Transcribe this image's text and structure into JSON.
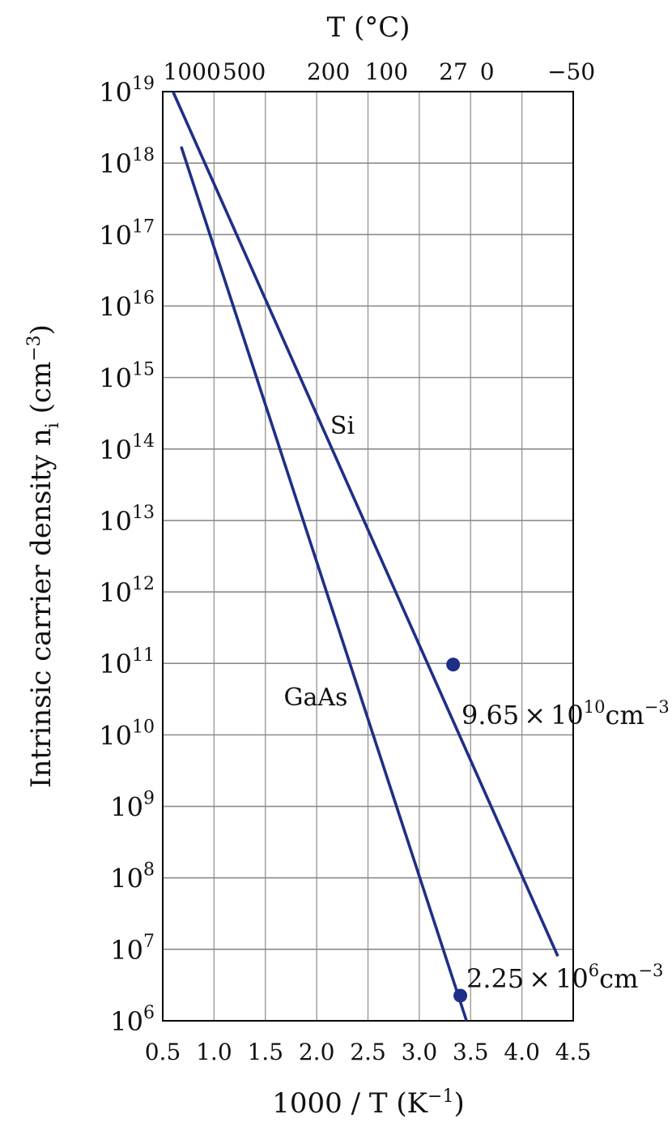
{
  "chart_data": {
    "type": "line",
    "x_axis": {
      "label": "1000 / T (K",
      "label_sup": "−1",
      "label_end": ")",
      "range": [
        0.5,
        4.5
      ],
      "ticks": [
        "0.5",
        "1.0",
        "1.5",
        "2.0",
        "2.5",
        "3.0",
        "3.5",
        "4.0",
        "4.5"
      ],
      "tick_values": [
        0.5,
        1.0,
        1.5,
        2.0,
        2.5,
        3.0,
        3.5,
        4.0,
        4.5
      ]
    },
    "top_axis": {
      "label": "T (°C)",
      "ticks": [
        {
          "text": "1000",
          "x": 0.7855
        },
        {
          "text": "500",
          "x": 1.2937
        },
        {
          "text": "200",
          "x": 2.1139
        },
        {
          "text": "100",
          "x": 2.6799
        },
        {
          "text": "27",
          "x": 3.3322
        },
        {
          "text": "0",
          "x": 3.661
        },
        {
          "text": "−50",
          "x": 4.4813
        }
      ]
    },
    "y_axis": {
      "label": "Intrinsic carrier density n",
      "label_sub": "i",
      "label_unit": " (cm",
      "label_sup": "−3",
      "label_end": ")",
      "scale": "log",
      "range_exp": [
        6,
        19
      ],
      "tick_base": "10",
      "tick_exps": [
        "6",
        "7",
        "8",
        "9",
        "10",
        "11",
        "12",
        "13",
        "14",
        "15",
        "16",
        "17",
        "18",
        "19"
      ]
    },
    "grid": true,
    "series": [
      {
        "name": "Si",
        "color": "#1f2f86",
        "points": [
          {
            "x": 0.6,
            "y": 1e+19
          },
          {
            "x": 4.35,
            "y": 8000000.0
          }
        ]
      },
      {
        "name": "GaAs",
        "color": "#1f2f86",
        "points": [
          {
            "x": 0.68,
            "y": 1.7e+18
          },
          {
            "x": 3.46,
            "y": 1000000.0
          }
        ]
      }
    ],
    "markers": [
      {
        "series": "Si",
        "x": 3.33,
        "y": 96500000000.0
      },
      {
        "series": "GaAs",
        "x": 3.4,
        "y": 2250000.0
      }
    ],
    "annotations": [
      {
        "name": "si-value-label",
        "mantissa": "9.65",
        "times": "×",
        "base": "10",
        "exp": "10",
        "unit": "cm",
        "unit_exp": "−3"
      },
      {
        "name": "gaas-value-label",
        "mantissa": "2.25",
        "times": "×",
        "base": "10",
        "exp": "6",
        "unit": "cm",
        "unit_exp": "−3"
      }
    ]
  }
}
